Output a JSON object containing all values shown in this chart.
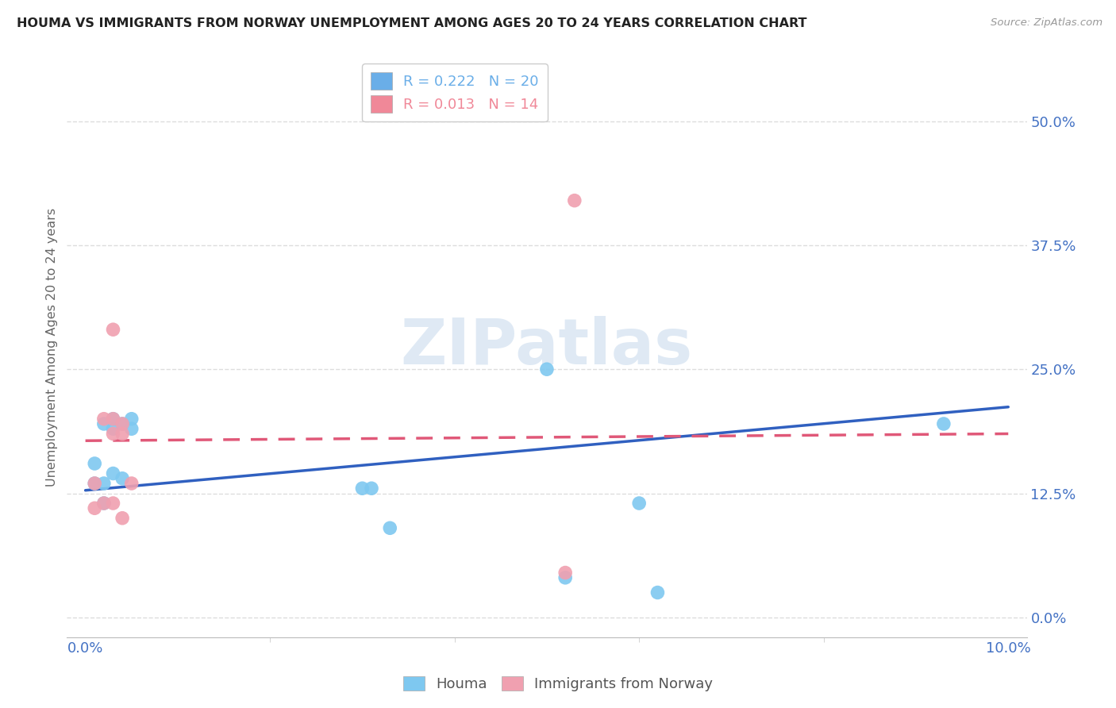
{
  "title": "HOUMA VS IMMIGRANTS FROM NORWAY UNEMPLOYMENT AMONG AGES 20 TO 24 YEARS CORRELATION CHART",
  "source": "Source: ZipAtlas.com",
  "ylabel": "Unemployment Among Ages 20 to 24 years",
  "ytick_labels": [
    "0.0%",
    "12.5%",
    "25.0%",
    "37.5%",
    "50.0%"
  ],
  "ytick_values": [
    0.0,
    0.125,
    0.25,
    0.375,
    0.5
  ],
  "xtick_labels": [
    "0.0%",
    "10.0%"
  ],
  "xtick_values": [
    0.0,
    0.1
  ],
  "xlim": [
    -0.002,
    0.102
  ],
  "ylim": [
    -0.02,
    0.565
  ],
  "legend_entries": [
    {
      "label": "R = 0.222   N = 20",
      "color": "#6AAEE8"
    },
    {
      "label": "R = 0.013   N = 14",
      "color": "#F08898"
    }
  ],
  "series1_name": "Houma",
  "series2_name": "Immigrants from Norway",
  "series1_color": "#7EC8F0",
  "series2_color": "#F0A0B0",
  "series1_line_color": "#3060C0",
  "series2_line_color": "#E05878",
  "series2_line_style": "--",
  "background_color": "#FFFFFF",
  "watermark": "ZIPatlas",
  "houma_x": [
    0.001,
    0.001,
    0.002,
    0.002,
    0.002,
    0.003,
    0.003,
    0.003,
    0.004,
    0.004,
    0.005,
    0.005,
    0.03,
    0.031,
    0.033,
    0.05,
    0.052,
    0.06,
    0.062,
    0.093
  ],
  "houma_y": [
    0.135,
    0.155,
    0.135,
    0.115,
    0.195,
    0.2,
    0.145,
    0.19,
    0.195,
    0.14,
    0.2,
    0.19,
    0.13,
    0.13,
    0.09,
    0.25,
    0.04,
    0.115,
    0.025,
    0.195
  ],
  "norway_x": [
    0.001,
    0.001,
    0.002,
    0.002,
    0.003,
    0.003,
    0.003,
    0.003,
    0.004,
    0.004,
    0.004,
    0.005,
    0.052,
    0.053
  ],
  "norway_y": [
    0.135,
    0.11,
    0.2,
    0.115,
    0.29,
    0.2,
    0.185,
    0.115,
    0.195,
    0.185,
    0.1,
    0.135,
    0.045,
    0.42
  ],
  "houma_trendline_x": [
    0.0,
    0.1
  ],
  "houma_trendline_y": [
    0.128,
    0.212
  ],
  "norway_trendline_x": [
    0.0,
    0.1
  ],
  "norway_trendline_y": [
    0.178,
    0.185
  ],
  "grid_color": "#DDDDDD",
  "marker_size": 160
}
